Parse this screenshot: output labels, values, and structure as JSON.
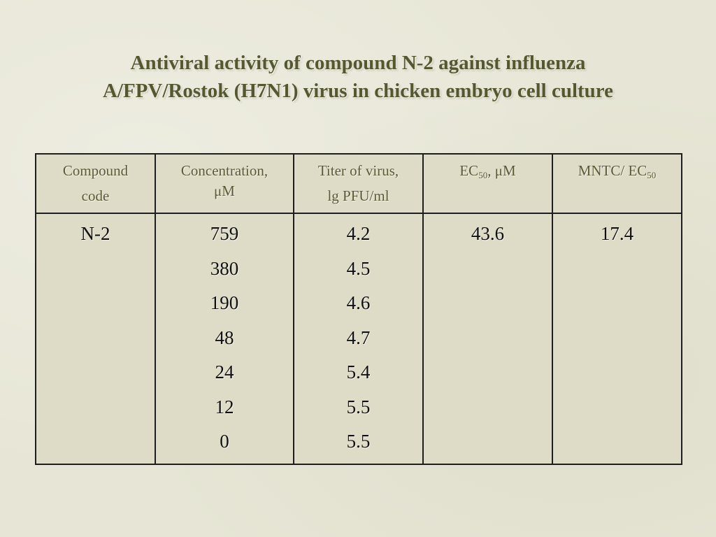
{
  "title": {
    "line1": "Antiviral activity of compound N-2 against influenza",
    "line2": "A/FPV/Rostok (H7N1) virus in chicken embryo cell culture"
  },
  "table": {
    "headers": {
      "compound_line1": "Compound",
      "compound_line2": "code",
      "concentration_line1": "Concentration,",
      "concentration_line2": "μM",
      "titer_line1": "Titer of virus,",
      "titer_line2": "lg PFU/ml",
      "ec50_prefix": "EC",
      "ec50_sub": "50",
      "ec50_suffix": ", μM",
      "mntc_prefix": "MNTC/ EC",
      "mntc_sub": "50"
    },
    "row": {
      "compound_code": "N-2",
      "concentrations": [
        "759",
        "380",
        "190",
        "48",
        "24",
        "12",
        "0"
      ],
      "titers": [
        "4.2",
        "4.5",
        "4.6",
        "4.7",
        "5.4",
        "5.5",
        "5.5"
      ],
      "ec50": "43.6",
      "mntc_ec50": "17.4"
    }
  }
}
